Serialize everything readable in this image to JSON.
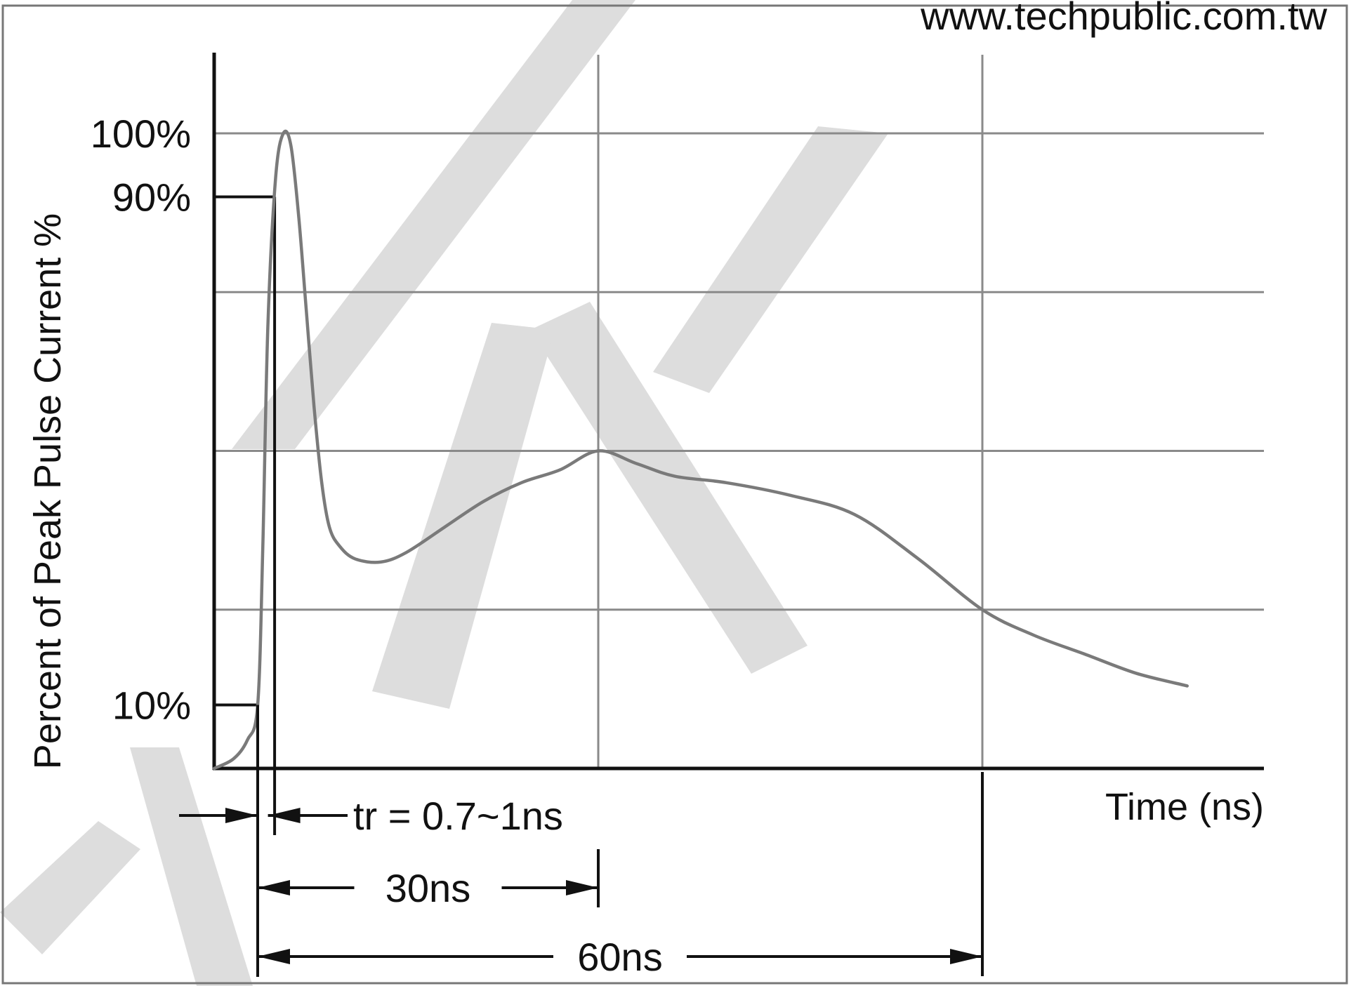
{
  "watermark": {
    "url": "www.techpublic.com.tw"
  },
  "chart_data": {
    "type": "line",
    "title": "",
    "xlabel": "Time (ns)",
    "ylabel": "Percent of Peak Pulse Current %",
    "xlim": [
      0,
      90
    ],
    "ylim": [
      0,
      100
    ],
    "x_gridlines": [
      30,
      60
    ],
    "y_gridlines": [
      25,
      50,
      75,
      100
    ],
    "y_tick_labels": [
      {
        "value": 100,
        "label": "100%"
      },
      {
        "value": 90,
        "label": "90%"
      },
      {
        "value": 10,
        "label": "10%"
      }
    ],
    "grid": true,
    "series": [
      {
        "name": "",
        "color": "#7a7a7a",
        "x": [
          0,
          1.5,
          2.6,
          3.4,
          3.8,
          4.2,
          4.8,
          5.4,
          6.0,
          6.6,
          7.2,
          7.8,
          8.4,
          9.0,
          9.8,
          11,
          13,
          15,
          18,
          21,
          24,
          27,
          30,
          33,
          36,
          40,
          45,
          50,
          55,
          60,
          64,
          68,
          72,
          76
        ],
        "y": [
          0,
          1.5,
          4.5,
          10,
          35,
          70,
          93,
          100,
          98,
          87,
          72,
          57,
          45,
          38,
          35,
          33,
          32.5,
          34,
          38,
          42,
          45,
          47,
          50,
          48,
          46,
          45,
          43,
          40,
          33,
          25,
          21,
          18,
          15,
          13
        ]
      }
    ],
    "annotations": [
      {
        "label": "tr = 0.7~1ns",
        "from": 3.4,
        "to": 4.2
      },
      {
        "label": "30ns",
        "from": 3.4,
        "to": 30
      },
      {
        "label": "60ns",
        "from": 3.4,
        "to": 60
      }
    ]
  }
}
